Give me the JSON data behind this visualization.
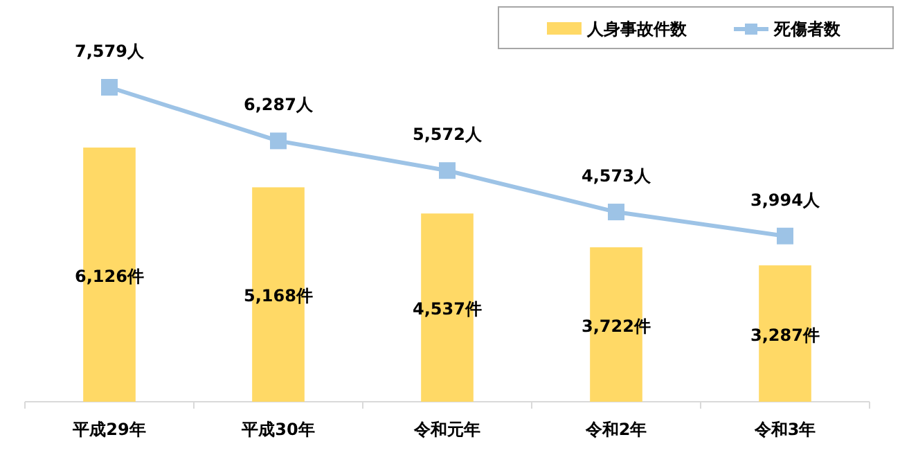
{
  "chart_data": {
    "type": "bar",
    "categories": [
      "平成29年",
      "平成30年",
      "令和元年",
      "令和2年",
      "令和3年"
    ],
    "series": [
      {
        "name": "人身事故件数",
        "color": "#ffd966",
        "values": [
          6126,
          5168,
          4537,
          3722,
          3287
        ],
        "value_labels": [
          "6,126件",
          "5,168件",
          "4,537件",
          "3,722件",
          "3,287件"
        ]
      },
      {
        "name": "死傷者数",
        "type": "line",
        "color": "#9dc3e6",
        "marker": "square",
        "values": [
          7579,
          6287,
          5572,
          4573,
          3994
        ],
        "value_labels": [
          "7,579人",
          "6,287人",
          "5,572人",
          "4,573人",
          "3,994人"
        ]
      }
    ],
    "legend": "top right"
  }
}
